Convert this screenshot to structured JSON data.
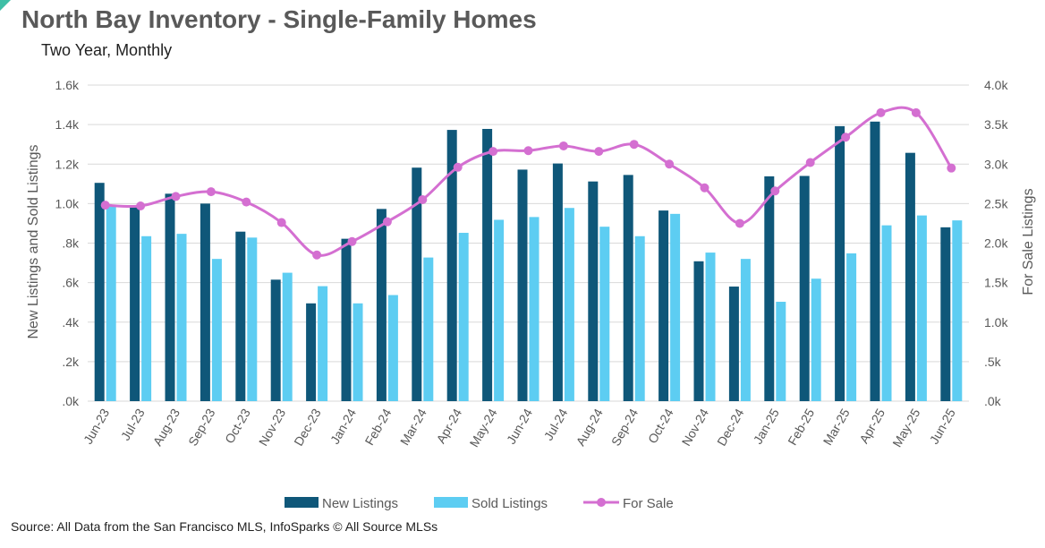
{
  "header": {
    "title": "North Bay Inventory - Single-Family Homes",
    "subtitle": "Two Year, Monthly"
  },
  "footer": {
    "source": "Source: All Data from the San Francisco MLS, InfoSparks © All Source MLSs"
  },
  "colors": {
    "new_listings": "#0f5779",
    "sold_listings": "#5dcdf2",
    "for_sale": "#d46fd1",
    "grid": "#d9d9d9",
    "corner_mark": "#3fbfa6"
  },
  "chart_data": {
    "type": "bar",
    "title": "North Bay Inventory - Single-Family Homes",
    "subtitle": "Two Year, Monthly",
    "categories": [
      "Jun-23",
      "Jul-23",
      "Aug-23",
      "Sep-23",
      "Oct-23",
      "Nov-23",
      "Dec-23",
      "Jan-24",
      "Feb-24",
      "Mar-24",
      "Apr-24",
      "May-24",
      "Jun-24",
      "Jul-24",
      "Aug-24",
      "Sep-24",
      "Oct-24",
      "Nov-24",
      "Dec-24",
      "Jan-25",
      "Feb-25",
      "Mar-25",
      "Apr-25",
      "May-25",
      "Jun-25"
    ],
    "ylabel": "New Listings and Sold Listings",
    "y2label": "For Sale Listings",
    "ylim": [
      0,
      1600
    ],
    "y2lim": [
      0,
      4000
    ],
    "yticks": [
      ".0k",
      ".2k",
      ".4k",
      ".6k",
      ".8k",
      "1.0k",
      "1.2k",
      "1.4k",
      "1.6k"
    ],
    "y2ticks": [
      ".0k",
      ".5k",
      "1.0k",
      "1.5k",
      "2.0k",
      "2.5k",
      "3.0k",
      "3.5k",
      "4.0k"
    ],
    "grid": true,
    "legend_position": "bottom",
    "series": [
      {
        "name": "New Listings",
        "type": "bar",
        "axis": "left",
        "values": [
          1105,
          985,
          1050,
          1000,
          858,
          615,
          495,
          822,
          973,
          1182,
          1373,
          1378,
          1172,
          1203,
          1112,
          1145,
          965,
          708,
          580,
          1138,
          1140,
          1392,
          1415,
          1257,
          880
        ]
      },
      {
        "name": "Sold Listings",
        "type": "bar",
        "axis": "left",
        "values": [
          985,
          835,
          847,
          720,
          828,
          650,
          582,
          495,
          537,
          727,
          852,
          918,
          932,
          978,
          883,
          835,
          948,
          752,
          720,
          503,
          620,
          748,
          890,
          940,
          915
        ]
      },
      {
        "name": "For Sale",
        "type": "line",
        "axis": "right",
        "values": [
          2480,
          2470,
          2590,
          2650,
          2520,
          2260,
          1850,
          2020,
          2270,
          2550,
          2960,
          3160,
          3170,
          3230,
          3160,
          3250,
          3000,
          2700,
          2250,
          2660,
          3020,
          3340,
          3650,
          3650,
          2950
        ]
      }
    ]
  }
}
